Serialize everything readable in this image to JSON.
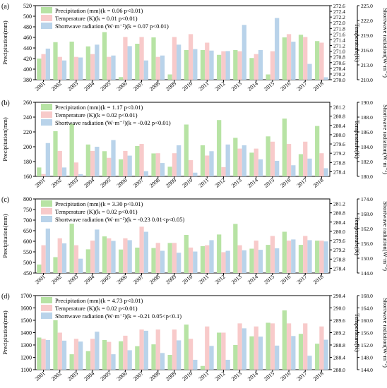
{
  "colors": {
    "precipitation": "#b7e3a4",
    "temperature": "#f8caca",
    "radiation": "#b9d3ea",
    "frame": "#000000"
  },
  "chart_data": [
    {
      "type": "bar",
      "panel_label": "(a)",
      "categories": [
        "2001",
        "2002",
        "2003",
        "2004",
        "2005",
        "2006",
        "2007",
        "2008",
        "2009",
        "2010",
        "2011",
        "2012",
        "2013",
        "2014",
        "2015",
        "2016",
        "2017",
        "2018"
      ],
      "ylabel": "Precipitation(mm)",
      "y2label": "Temperature(K)",
      "y3label": "Shortwave radiation(W·m⁻²)",
      "ylim": [
        380,
        520
      ],
      "yticks": [
        380,
        400,
        420,
        440,
        460,
        480,
        500,
        520
      ],
      "y2lim": [
        270.0,
        272.6
      ],
      "y2ticks": [
        "270.0",
        "270.2",
        "270.4",
        "270.6",
        "270.8",
        "271.0",
        "271.2",
        "271.4",
        "271.6",
        "271.8",
        "272.0",
        "272.2",
        "272.4",
        "272.6"
      ],
      "y3lim": [
        210.0,
        225.0
      ],
      "y3ticks": [
        "210.0",
        "213.0",
        "216.0",
        "219.0",
        "222.0",
        "225.0"
      ],
      "legend": [
        "Precipitation (mm)(k = 0.06 p<0.01)",
        "Temperature (K)(k = 0.01 p<0.01)",
        "Shortwave radiation (W·m⁻²)(k = 0.07 p<0.01)"
      ],
      "series": [
        {
          "name": "Precipitation",
          "axis": "y",
          "values": [
            420,
            451,
            452,
            443,
            470,
            385,
            448,
            460,
            390,
            436,
            436,
            427,
            436,
            421,
            390,
            460,
            465,
            453
          ]
        },
        {
          "name": "Temperature",
          "axis": "y2",
          "values": [
            270.9,
            270.8,
            270.8,
            270.9,
            270.8,
            271.5,
            271.5,
            270.8,
            271.5,
            271.6,
            271.3,
            271.0,
            271.0,
            270.9,
            271.0,
            271.6,
            271.5,
            271.3
          ]
        },
        {
          "name": "Shortwave radiation",
          "axis": "y3",
          "values": [
            216.3,
            213.9,
            214.5,
            217.1,
            214.9,
            216.8,
            213.9,
            214.9,
            217.1,
            216.2,
            215.9,
            215.8,
            221.1,
            216.0,
            222.5,
            217.7,
            213.2,
            210.5
          ]
        }
      ]
    },
    {
      "type": "bar",
      "panel_label": "(b)",
      "categories": [
        "2001",
        "2002",
        "2003",
        "2004",
        "2005",
        "2006",
        "2007",
        "2008",
        "2009",
        "2010",
        "2011",
        "2012",
        "2013",
        "2014",
        "2015",
        "2016",
        "2017",
        "2018"
      ],
      "ylabel": "Precipitation(mm)",
      "y2label": "Temperature(K)",
      "y3label": "Shortwave radiation(W·m⁻²)",
      "ylim": [
        160,
        260
      ],
      "yticks": [
        160,
        180,
        200,
        220,
        240,
        260
      ],
      "y2lim": [
        278.2,
        281.4
      ],
      "y2ticks": [
        "278.4",
        "278.8",
        "279.2",
        "279.6",
        "280.0",
        "280.4",
        "280.8",
        "281.2"
      ],
      "y3lim": [
        180.0,
        190.0
      ],
      "y3ticks": [
        "180.0",
        "182.0",
        "184.0",
        "186.0",
        "188.0",
        "190.0"
      ],
      "legend": [
        "Precipitation (mm)(k = 1.17 p<0.01)",
        "Temperature (K)(k = 0.02 p<0.01)",
        "Shortwave radiation (W·m⁻²)(k = -0.02 p<0.01)"
      ],
      "series": [
        {
          "name": "Precipitation",
          "axis": "y",
          "values": [
            172,
            221,
            231,
            203,
            194,
            183,
            201,
            191,
            173,
            230,
            202,
            236,
            212,
            192,
            214,
            238,
            190,
            228
          ]
        },
        {
          "name": "Temperature",
          "axis": "y2",
          "values": [
            278.3,
            279.3,
            278.8,
            279.3,
            279.0,
            279.3,
            279.6,
            279.2,
            279.2,
            278.9,
            279.1,
            278.6,
            279.4,
            279.4,
            279.7,
            279.6,
            279.7,
            279.2
          ]
        },
        {
          "name": "Shortwave radiation",
          "axis": "y3",
          "values": [
            184.5,
            181.2,
            180.3,
            184.0,
            184.9,
            182.8,
            180.7,
            181.8,
            184.2,
            180.5,
            183.4,
            184.3,
            184.2,
            182.3,
            182.1,
            181.5,
            182.4,
            181.1
          ]
        }
      ]
    },
    {
      "type": "bar",
      "panel_label": "(c)",
      "categories": [
        "2001",
        "2002",
        "2003",
        "2004",
        "2005",
        "2006",
        "2007",
        "2008",
        "2009",
        "2010",
        "2011",
        "2012",
        "2013",
        "2014",
        "2015",
        "2016",
        "2017",
        "2018"
      ],
      "ylabel": "Precipitation(mm)",
      "y2label": "Temperature(K)",
      "y3label": "Shortwave radiation(W·m⁻²)",
      "ylim": [
        450,
        800
      ],
      "yticks": [
        450,
        500,
        550,
        600,
        650,
        700,
        750,
        800
      ],
      "y2lim": [
        278.2,
        281.4
      ],
      "y2ticks": [
        "278.4",
        "278.8",
        "279.2",
        "279.6",
        "280.0",
        "280.4",
        "280.8",
        "281.2"
      ],
      "y3lim": [
        144.0,
        174.0
      ],
      "y3ticks": [
        "144.0",
        "150.0",
        "156.0",
        "162.0",
        "168.0",
        "174.0"
      ],
      "legend": [
        "Precipitation (mm)(k = 3.30 p<0.01)",
        "Temperature (K)(k = 0.02 p<0.01)",
        "Shortwave radiation (W·m⁻²)(k = -0.23 0.01<p<0.05)"
      ],
      "series": [
        {
          "name": "Precipitation",
          "axis": "y",
          "values": [
            490,
            525,
            683,
            562,
            623,
            561,
            570,
            568,
            592,
            630,
            577,
            632,
            682,
            565,
            583,
            645,
            583,
            603
          ]
        },
        {
          "name": "Temperature",
          "axis": "y2",
          "values": [
            279.4,
            279.7,
            279.4,
            279.6,
            279.7,
            279.7,
            280.2,
            279.5,
            279.5,
            279.3,
            279.4,
            279.1,
            279.4,
            279.6,
            279.8,
            279.6,
            279.8,
            279.6
          ]
        },
        {
          "name": "Shortwave radiation",
          "axis": "y3",
          "values": [
            162.0,
            156.0,
            149.8,
            161.6,
            157.0,
            157.3,
            160.7,
            153.0,
            152.2,
            152.7,
            157.3,
            153.0,
            153.2,
            153.4,
            154.0,
            157.6,
            157.3,
            156.8
          ]
        }
      ]
    },
    {
      "type": "bar",
      "panel_label": "(d)",
      "categories": [
        "2001",
        "2002",
        "2003",
        "2004",
        "2005",
        "2006",
        "2007",
        "2008",
        "2009",
        "2010",
        "2011",
        "2012",
        "2013",
        "2014",
        "2015",
        "2016",
        "2017",
        "2018"
      ],
      "ylabel": "Precipitation(mm)",
      "y2label": "Temperature(K)",
      "y3label": "Shortwave radiation(W·m⁻²)",
      "ylim": [
        1100,
        1700
      ],
      "yticks": [
        1100,
        1200,
        1300,
        1400,
        1500,
        1600,
        1700
      ],
      "y2lim": [
        288.0,
        290.4
      ],
      "y2ticks": [
        "288.0",
        "288.4",
        "288.8",
        "289.2",
        "289.6",
        "290.0",
        "290.4"
      ],
      "y3lim": [
        144.0,
        168.0
      ],
      "y3ticks": [
        "144.0",
        "148.0",
        "152.0",
        "156.0",
        "160.0",
        "164.0",
        "168.0"
      ],
      "legend": [
        "Precipitation (mm)(k = 4.73 p<0.01)",
        "Temperature (K)(k = 0.02 p<0.01)",
        "Shortwave radiation (W·m⁻²)(k = -0.21 0.05<p<0.1)"
      ],
      "series": [
        {
          "name": "Precipitation",
          "axis": "y",
          "values": [
            1360,
            1500,
            1225,
            1250,
            1340,
            1330,
            1290,
            1305,
            1220,
            1465,
            1130,
            1400,
            1300,
            1370,
            1480,
            1580,
            1390,
            1310
          ]
        },
        {
          "name": "Temperature",
          "axis": "y2",
          "values": [
            289.0,
            289.2,
            289.0,
            289.0,
            288.9,
            289.1,
            289.3,
            289.3,
            289.3,
            289.0,
            289.4,
            289.2,
            289.5,
            289.4,
            289.5,
            289.5,
            289.5,
            289.4
          ]
        },
        {
          "name": "Shortwave radiation",
          "axis": "y3",
          "values": [
            153.6,
            153.4,
            153.1,
            156.3,
            149.0,
            150.3,
            156.6,
            149.4,
            153.5,
            147.2,
            151.7,
            147.2,
            157.4,
            154.7,
            151.8,
            154.9,
            148.5,
            153.7
          ]
        }
      ]
    }
  ]
}
